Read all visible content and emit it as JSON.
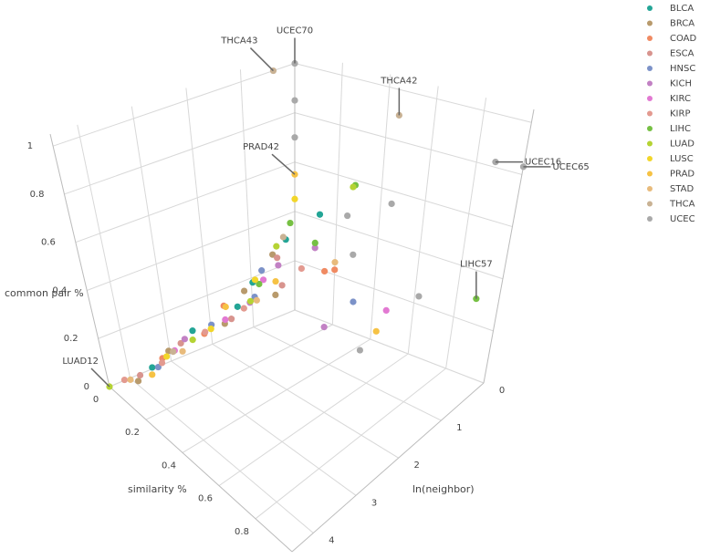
{
  "chart_data": {
    "type": "scatter3d",
    "xlabel": "similarity %",
    "ylabel": "ln(neighbor)",
    "zlabel": "common pair %",
    "xlim": [
      0,
      1
    ],
    "ylim": [
      0,
      4.5
    ],
    "zlim": [
      0,
      1.05
    ],
    "xticks": [
      0,
      0.2,
      0.4,
      0.6,
      0.8
    ],
    "yticks": [
      0,
      1,
      2,
      3,
      4
    ],
    "zticks": [
      0,
      0.2,
      0.4,
      0.6,
      0.8,
      1
    ],
    "grid": true,
    "legend": "top-right",
    "series": [
      {
        "name": "BLCA",
        "color": "#23a596",
        "x": [
          0.04,
          0.02,
          0.06,
          0,
          0.12,
          0.03
        ],
        "y": [
          3.6,
          2.5,
          1.6,
          0.2,
          0,
          1.1
        ],
        "z": [
          0.04,
          0.1,
          0.15,
          0.3,
          0.42,
          0.2
        ]
      },
      {
        "name": "BRCA",
        "color": "#b89a6c",
        "x": [
          0.05,
          0.02,
          0.08,
          0,
          0.03,
          0.1
        ],
        "y": [
          4.0,
          3.1,
          2.0,
          0.5,
          1.3,
          0.9
        ],
        "z": [
          0.02,
          0.06,
          0.12,
          0.26,
          0.18,
          0.16
        ]
      },
      {
        "name": "COAD",
        "color": "#f08a62",
        "x": [
          0.03,
          0.06,
          0.15,
          0.2,
          0.01
        ],
        "y": [
          3.3,
          2.4,
          0,
          0,
          1.7
        ],
        "z": [
          0.05,
          0.1,
          0.2,
          0.22,
          0.14
        ]
      },
      {
        "name": "ESCA",
        "color": "#d8948e",
        "x": [
          0.04,
          0.02,
          0.07,
          0.09,
          0
        ],
        "y": [
          3.9,
          2.8,
          1.8,
          0.7,
          0.4
        ],
        "z": [
          0.03,
          0.07,
          0.12,
          0.18,
          0.24
        ]
      },
      {
        "name": "HNSC",
        "color": "#7c92c8",
        "x": [
          0.05,
          0.03,
          0.3,
          0.06,
          0.01
        ],
        "y": [
          3.5,
          2.1,
          0,
          1.2,
          0.8
        ],
        "z": [
          0.04,
          0.1,
          0.12,
          0.16,
          0.22
        ]
      },
      {
        "name": "KICH",
        "color": "#c281c4",
        "x": [
          0.02,
          0.08,
          0.05,
          0.35,
          0.1
        ],
        "y": [
          2.7,
          1.4,
          0.6,
          0.9,
          0
        ],
        "z": [
          0.08,
          0.16,
          0.24,
          0.12,
          0.28
        ]
      },
      {
        "name": "KIRC",
        "color": "#e279d2",
        "x": [
          0.03,
          0.06,
          0.55,
          0.04
        ],
        "y": [
          3.0,
          1.9,
          0.4,
          0.9
        ],
        "z": [
          0.06,
          0.12,
          0.2,
          0.2
        ]
      },
      {
        "name": "KIRP",
        "color": "#e39a90",
        "x": [
          0.02,
          0.05,
          0.04,
          0.07,
          0.1
        ],
        "y": [
          4.2,
          3.4,
          2.3,
          1.5,
          0.3
        ],
        "z": [
          0.02,
          0.05,
          0.09,
          0.14,
          0.22
        ]
      },
      {
        "name": "LIHC",
        "color": "#76c043",
        "x": [
          0.95,
          0.28,
          0.1,
          0,
          0.04
        ],
        "y": [
          0.3,
          0,
          0,
          0.1,
          1.0
        ],
        "z": [
          0.35,
          0.58,
          0.3,
          0.36,
          0.19
        ]
      },
      {
        "name": "LUAD",
        "color": "#b5d334",
        "x": [
          0,
          0.04,
          0.27,
          0.06,
          0.02
        ],
        "y": [
          4.5,
          2.6,
          0,
          1.3,
          0.5
        ],
        "z": [
          0,
          0.08,
          0.57,
          0.15,
          0.3
        ]
      },
      {
        "name": "LUSC",
        "color": "#f2d62a",
        "x": [
          0.03,
          0.05,
          0.02,
          0
        ],
        "y": [
          3.2,
          2.2,
          1.0,
          0
        ],
        "z": [
          0.05,
          0.1,
          0.2,
          0.45
        ]
      },
      {
        "name": "PRAD",
        "color": "#f6c244",
        "x": [
          0,
          0.06,
          0.02,
          0.55,
          0.08
        ],
        "y": [
          0,
          3.7,
          1.7,
          0.6,
          0.8
        ],
        "z": [
          0.55,
          0.03,
          0.14,
          0.14,
          0.2
        ]
      },
      {
        "name": "STAD",
        "color": "#e8bb7c",
        "x": [
          0.03,
          0.05,
          0.07,
          0.2
        ],
        "y": [
          4.1,
          2.9,
          1.2,
          0
        ],
        "z": [
          0.02,
          0.06,
          0.15,
          0.25
        ]
      },
      {
        "name": "THCA",
        "color": "#c9b294",
        "x": [
          0,
          0.45,
          0.02,
          0.01
        ],
        "y": [
          0.4,
          0,
          3.0,
          0.3
        ],
        "z": [
          1,
          0.9,
          0.05,
          0.32
        ]
      },
      {
        "name": "UCEC",
        "color": "#a9a9a9",
        "x": [
          0,
          1,
          0.88,
          0,
          0,
          0.45,
          0.25,
          0.7,
          0.35,
          0.6
        ],
        "y": [
          0,
          0,
          0,
          0,
          0,
          0,
          0,
          0.4,
          0.3,
          1.2
        ],
        "z": [
          1,
          0.83,
          0.82,
          0.85,
          0.7,
          0.55,
          0.45,
          0.3,
          0.35,
          0.15
        ]
      }
    ],
    "annotations": [
      {
        "text": "UCEC70",
        "x": 0,
        "y": 0,
        "z": 1
      },
      {
        "text": "THCA43",
        "x": 0,
        "y": 0.4,
        "z": 1
      },
      {
        "text": "THCA42",
        "x": 0.45,
        "y": 0,
        "z": 0.9
      },
      {
        "text": "PRAD42",
        "x": 0,
        "y": 0,
        "z": 0.55
      },
      {
        "text": "UCEC65",
        "x": 1,
        "y": 0,
        "z": 0.83
      },
      {
        "text": "UCEC16",
        "x": 0.88,
        "y": 0,
        "z": 0.82
      },
      {
        "text": "LIHC57",
        "x": 0.95,
        "y": 0.3,
        "z": 0.35
      },
      {
        "text": "LUAD12",
        "x": 0,
        "y": 4.5,
        "z": 0
      }
    ]
  }
}
